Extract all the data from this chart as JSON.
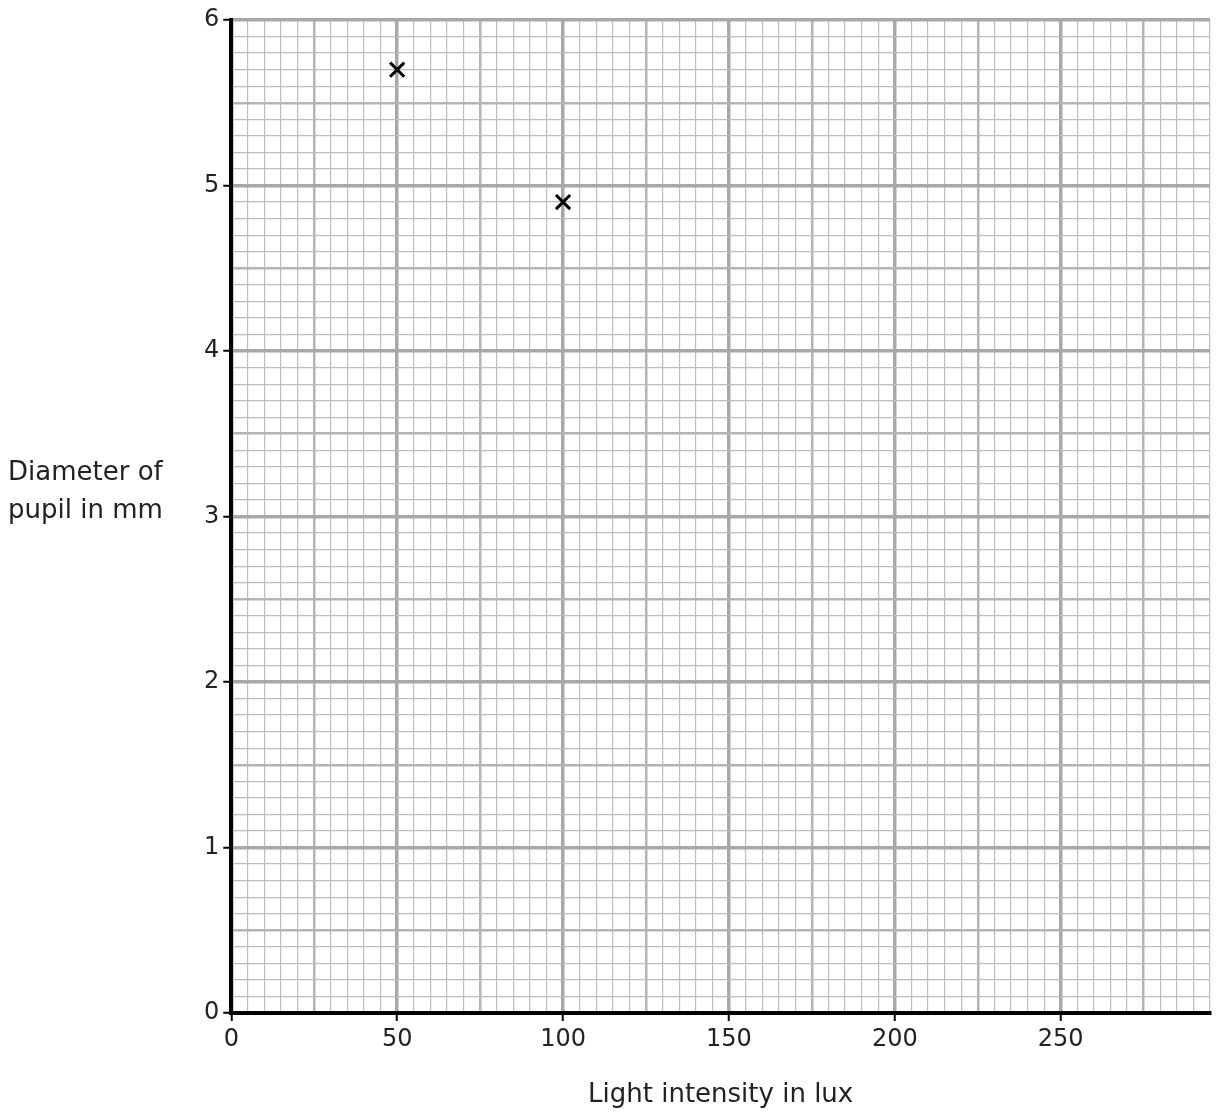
{
  "chart_data": {
    "type": "scatter",
    "xlabel": "Light intensity in lux",
    "ylabel": "Diameter of pupil in mm",
    "x": [
      50,
      100
    ],
    "values": [
      5.7,
      4.9
    ],
    "color": "#000000",
    "marker": "cross",
    "grid": true,
    "legend": false,
    "xlim": [
      0,
      295
    ],
    "ylim": [
      0,
      6
    ],
    "xticks": [
      0,
      {
        "value": 5,
        "label": null
      },
      {
        "value": 10,
        "label": null
      },
      {
        "value": 15,
        "label": null
      },
      {
        "value": 20,
        "label": null
      },
      {
        "value": 25,
        "label": null
      },
      {
        "value": 30,
        "label": null
      },
      {
        "value": 35,
        "label": null
      },
      {
        "value": 40,
        "label": null
      },
      {
        "value": 45,
        "label": null
      },
      50,
      {
        "value": 55,
        "label": null
      },
      {
        "value": 60,
        "label": null
      },
      {
        "value": 65,
        "label": null
      },
      {
        "value": 70,
        "label": null
      },
      {
        "value": 75,
        "label": null
      },
      {
        "value": 80,
        "label": null
      },
      {
        "value": 85,
        "label": null
      },
      {
        "value": 90,
        "label": null
      },
      {
        "value": 95,
        "label": null
      },
      100,
      {
        "value": 105,
        "label": null
      },
      {
        "value": 110,
        "label": null
      },
      {
        "value": 115,
        "label": null
      },
      {
        "value": 120,
        "label": null
      },
      {
        "value": 125,
        "label": null
      },
      {
        "value": 130,
        "label": null
      },
      {
        "value": 135,
        "label": null
      },
      {
        "value": 140,
        "label": null
      },
      {
        "value": 145,
        "label": null
      },
      150,
      {
        "value": 155,
        "label": null
      },
      {
        "value": 160,
        "label": null
      },
      {
        "value": 165,
        "label": null
      },
      {
        "value": 170,
        "label": null
      },
      {
        "value": 175,
        "label": null
      },
      {
        "value": 180,
        "label": null
      },
      {
        "value": 185,
        "label": null
      },
      {
        "value": 190,
        "label": null
      },
      {
        "value": 195,
        "label": null
      },
      200,
      {
        "value": 205,
        "label": null
      },
      {
        "value": 210,
        "label": null
      },
      {
        "value": 215,
        "label": null
      },
      {
        "value": 220,
        "label": null
      },
      {
        "value": 225,
        "label": null
      },
      {
        "value": 230,
        "label": null
      },
      {
        "value": 235,
        "label": null
      },
      {
        "value": 240,
        "label": null
      },
      {
        "value": 245,
        "label": null
      },
      250,
      {
        "value": 255,
        "label": null
      },
      {
        "value": 260,
        "label": null
      },
      {
        "value": 265,
        "label": null
      },
      {
        "value": 270,
        "label": null
      },
      {
        "value": 275,
        "label": null
      },
      {
        "value": 280,
        "label": null
      },
      {
        "value": 285,
        "label": null
      },
      {
        "value": 290,
        "label": null
      },
      {
        "value": 295,
        "label": null
      }
    ],
    "yticks": [
      0,
      {
        "value": 0.1,
        "label": null
      },
      {
        "value": 0.2,
        "label": null
      },
      {
        "value": 0.3,
        "label": null
      },
      {
        "value": 0.4,
        "label": null
      },
      {
        "value": 0.5,
        "label": null
      },
      {
        "value": 0.6,
        "label": null
      },
      {
        "value": 0.7,
        "label": null
      },
      {
        "value": 0.8,
        "label": null
      },
      {
        "value": 0.9,
        "label": null
      },
      1,
      {
        "value": 1.1,
        "label": null
      },
      {
        "value": 1.2,
        "label": null
      },
      {
        "value": 1.3,
        "label": null
      },
      {
        "value": 1.4,
        "label": null
      },
      {
        "value": 1.5,
        "label": null
      },
      {
        "value": 1.6,
        "label": null
      },
      {
        "value": 1.7,
        "label": null
      },
      {
        "value": 1.8,
        "label": null
      },
      {
        "value": 1.9,
        "label": null
      },
      2,
      {
        "value": 2.1,
        "label": null
      },
      {
        "value": 2.2,
        "label": null
      },
      {
        "value": 2.3,
        "label": null
      },
      {
        "value": 2.4,
        "label": null
      },
      {
        "value": 2.5,
        "label": null
      },
      {
        "value": 2.6,
        "label": null
      },
      {
        "value": 2.7,
        "label": null
      },
      {
        "value": 2.8,
        "label": null
      },
      {
        "value": 2.9,
        "label": null
      },
      3,
      {
        "value": 3.1,
        "label": null
      },
      {
        "value": 3.2,
        "label": null
      },
      {
        "value": 3.3,
        "label": null
      },
      {
        "value": 3.4,
        "label": null
      },
      {
        "value": 3.5,
        "label": null
      },
      {
        "value": 3.6,
        "label": null
      },
      {
        "value": 3.7,
        "label": null
      },
      {
        "value": 3.8,
        "label": null
      },
      {
        "value": 3.9,
        "label": null
      },
      4,
      {
        "value": 4.1,
        "label": null
      },
      {
        "value": 4.2,
        "label": null
      },
      {
        "value": 4.3,
        "label": null
      },
      {
        "value": 4.4,
        "label": null
      },
      {
        "value": 4.5,
        "label": null
      },
      {
        "value": 4.6,
        "label": null
      },
      {
        "value": 4.7,
        "label": null
      },
      {
        "value": 4.8,
        "label": null
      },
      {
        "value": 4.9,
        "label": null
      },
      5,
      {
        "value": 5.1,
        "label": null
      },
      {
        "value": 5.2,
        "label": null
      },
      {
        "value": 5.3,
        "label": null
      },
      {
        "value": 5.4,
        "label": null
      },
      {
        "value": 5.5,
        "label": null
      },
      {
        "value": 5.6,
        "label": null
      },
      {
        "value": 5.7,
        "label": null
      },
      {
        "value": 5.8,
        "label": null
      },
      {
        "value": 5.9,
        "label": null
      },
      6
    ]
  }
}
